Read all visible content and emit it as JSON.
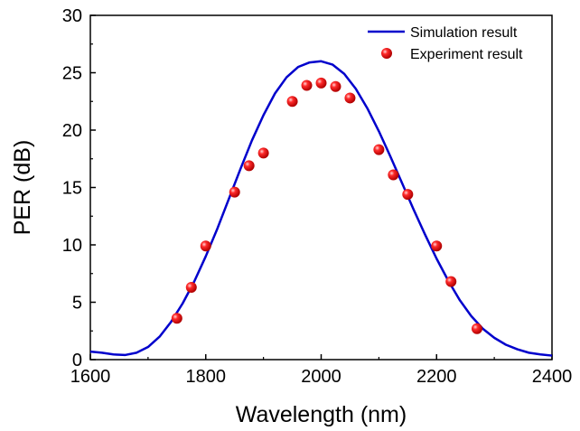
{
  "chart_data": {
    "type": "line",
    "xlabel": "Wavelength (nm)",
    "ylabel": "PER (dB)",
    "xlim": [
      1600,
      2400
    ],
    "ylim": [
      0,
      30
    ],
    "xticks": [
      1600,
      1800,
      2000,
      2200,
      2400
    ],
    "yticks": [
      0,
      5,
      10,
      15,
      20,
      25,
      30
    ],
    "grid": false,
    "legend_position": "top-right",
    "series": [
      {
        "name": "Simulation result",
        "kind": "line",
        "color": "#0000cc",
        "x": [
          1600,
          1620,
          1640,
          1660,
          1680,
          1700,
          1720,
          1740,
          1760,
          1780,
          1800,
          1820,
          1840,
          1860,
          1880,
          1900,
          1920,
          1940,
          1960,
          1980,
          2000,
          2020,
          2040,
          2060,
          2080,
          2100,
          2120,
          2140,
          2160,
          2180,
          2200,
          2220,
          2240,
          2260,
          2280,
          2300,
          2320,
          2340,
          2360,
          2380,
          2400
        ],
        "y": [
          0.7,
          0.6,
          0.45,
          0.4,
          0.6,
          1.1,
          2.0,
          3.3,
          4.9,
          6.8,
          9.0,
          11.4,
          14.0,
          16.6,
          19.1,
          21.3,
          23.2,
          24.6,
          25.5,
          25.9,
          26.0,
          25.7,
          24.9,
          23.6,
          21.9,
          19.9,
          17.7,
          15.4,
          13.1,
          10.9,
          8.8,
          6.9,
          5.2,
          3.8,
          2.7,
          1.9,
          1.3,
          0.9,
          0.6,
          0.45,
          0.35
        ]
      },
      {
        "name": "Experiment result",
        "kind": "scatter",
        "color": "#ff0000",
        "x": [
          1750,
          1775,
          1800,
          1850,
          1875,
          1900,
          1950,
          1975,
          2000,
          2025,
          2050,
          2100,
          2125,
          2150,
          2200,
          2225,
          2270
        ],
        "y": [
          3.6,
          6.3,
          9.9,
          14.6,
          16.9,
          18.0,
          22.5,
          23.9,
          24.1,
          23.8,
          22.8,
          18.3,
          16.1,
          14.4,
          9.9,
          6.8,
          2.7
        ]
      }
    ]
  }
}
